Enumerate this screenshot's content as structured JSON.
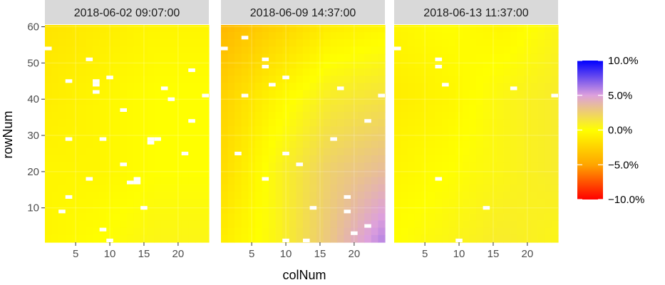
{
  "chart_data": {
    "type": "heatmap",
    "xlabel": "colNum",
    "ylabel": "rowNum",
    "x_range": [
      0.5,
      24.5
    ],
    "y_range": [
      0.5,
      60.5
    ],
    "x_ticks": [
      5,
      10,
      15,
      20
    ],
    "y_ticks": [
      10,
      20,
      30,
      40,
      50,
      60
    ],
    "legend": {
      "position": "right",
      "scale": "percent",
      "limits": [
        -10,
        10
      ],
      "ticks": [
        {
          "value": 10,
          "label": "10.0%"
        },
        {
          "value": 5,
          "label": "5.0%"
        },
        {
          "value": 0,
          "label": "0.0%"
        },
        {
          "value": -5,
          "label": "−5.0%"
        },
        {
          "value": -10,
          "label": "−10.0%"
        }
      ],
      "colors": {
        "low": "#ff0000",
        "mid_low": "#ffa500",
        "mid": "#ffff00",
        "mid_high": "#dda0dd",
        "high": "#0000ff"
      }
    },
    "panels": [
      {
        "title": "2018-06-02 09:07:00",
        "field": [
          [
            -1.5,
            -1.0,
            -0.5,
            -0.5
          ],
          [
            -1.0,
            -0.5,
            0.0,
            0.0
          ],
          [
            -0.5,
            -0.5,
            0.0,
            0.0
          ],
          [
            -0.5,
            0.0,
            0.5,
            0.5
          ]
        ],
        "missing": [
          [
            1,
            54
          ],
          [
            3,
            9
          ],
          [
            4,
            13
          ],
          [
            4,
            29
          ],
          [
            4,
            45
          ],
          [
            7,
            18
          ],
          [
            7,
            51
          ],
          [
            8,
            42
          ],
          [
            8,
            44
          ],
          [
            8,
            45
          ],
          [
            9,
            4
          ],
          [
            9,
            29
          ],
          [
            10,
            1
          ],
          [
            10,
            46
          ],
          [
            12,
            22
          ],
          [
            12,
            37
          ],
          [
            13,
            17
          ],
          [
            14,
            17
          ],
          [
            14,
            18
          ],
          [
            15,
            10
          ],
          [
            16,
            28
          ],
          [
            16,
            29
          ],
          [
            17,
            29
          ],
          [
            18,
            43
          ],
          [
            19,
            40
          ],
          [
            21,
            25
          ],
          [
            22,
            34
          ],
          [
            22,
            48
          ],
          [
            24,
            41
          ]
        ]
      },
      {
        "title": "2018-06-09 14:37:00",
        "field": [
          [
            -4.0,
            -2.5,
            -1.0,
            -0.5
          ],
          [
            -2.5,
            -0.5,
            1.0,
            1.5
          ],
          [
            -2.0,
            0.5,
            2.5,
            3.5
          ],
          [
            -1.0,
            0.5,
            3.0,
            6.0
          ]
        ],
        "missing": [
          [
            1,
            54
          ],
          [
            3,
            25
          ],
          [
            4,
            41
          ],
          [
            4,
            57
          ],
          [
            7,
            18
          ],
          [
            7,
            49
          ],
          [
            7,
            51
          ],
          [
            8,
            44
          ],
          [
            10,
            1
          ],
          [
            10,
            25
          ],
          [
            10,
            46
          ],
          [
            12,
            22
          ],
          [
            13,
            1
          ],
          [
            14,
            10
          ],
          [
            17,
            29
          ],
          [
            18,
            43
          ],
          [
            19,
            9
          ],
          [
            19,
            13
          ],
          [
            20,
            3
          ],
          [
            22,
            5
          ],
          [
            22,
            34
          ],
          [
            24,
            41
          ]
        ]
      },
      {
        "title": "2018-06-13 11:37:00",
        "field": [
          [
            -0.5,
            0.0,
            -0.5,
            0.5
          ],
          [
            -1.0,
            -0.5,
            0.5,
            1.0
          ],
          [
            -0.5,
            0.0,
            0.5,
            1.0
          ],
          [
            0.0,
            0.5,
            1.0,
            0.5
          ]
        ],
        "missing": [
          [
            1,
            54
          ],
          [
            7,
            18
          ],
          [
            7,
            49
          ],
          [
            7,
            51
          ],
          [
            8,
            44
          ],
          [
            10,
            1
          ],
          [
            14,
            10
          ],
          [
            18,
            43
          ],
          [
            24,
            41
          ]
        ]
      }
    ]
  }
}
